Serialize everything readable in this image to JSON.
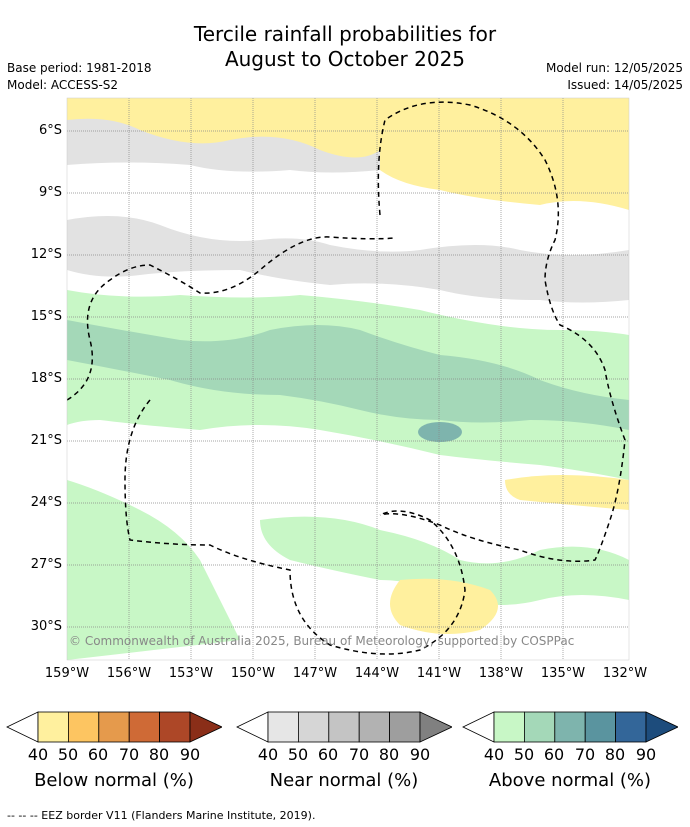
{
  "header": {
    "title_line1": "Tercile rainfall probabilities for",
    "title_line2": "August to October 2025",
    "base_period": "Base period: 1981-2018",
    "model": "Model: ACCESS-S2",
    "model_run": "Model run: 12/05/2025",
    "issued": "Issued: 14/05/2025"
  },
  "map": {
    "lat_labels": [
      "6°S",
      "9°S",
      "12°S",
      "15°S",
      "18°S",
      "21°S",
      "24°S",
      "27°S",
      "30°S"
    ],
    "lon_labels": [
      "159°W",
      "156°W",
      "153°W",
      "150°W",
      "147°W",
      "144°W",
      "141°W",
      "138°W",
      "135°W",
      "132°W"
    ],
    "copyright": "© Commonwealth of Australia 2025, Bureau of Meteorology, supported by COSPPac"
  },
  "legend": {
    "below": {
      "caption": "Below normal (%)",
      "ticks": [
        "40",
        "50",
        "60",
        "70",
        "80",
        "90"
      ],
      "colors": [
        "#ffffff",
        "#fff09e",
        "#fdc561",
        "#e59a4c",
        "#cf6a36",
        "#ad4727",
        "#8a2e18"
      ]
    },
    "near": {
      "caption": "Near normal (%)",
      "ticks": [
        "40",
        "50",
        "60",
        "70",
        "80",
        "90"
      ],
      "colors": [
        "#ffffff",
        "#e6e6e6",
        "#d6d6d6",
        "#c4c4c4",
        "#b2b2b2",
        "#9e9e9e",
        "#808080"
      ]
    },
    "above": {
      "caption": "Above normal (%)",
      "ticks": [
        "40",
        "50",
        "60",
        "70",
        "80",
        "90"
      ],
      "colors": [
        "#ffffff",
        "#c8f7c6",
        "#a4d8b8",
        "#7eb4ad",
        "#5a949f",
        "#336699",
        "#1d4c7c"
      ]
    }
  },
  "footer": {
    "eez_note": "--  --  -- EEZ border V11 (Flanders Marine Institute, 2019)."
  }
}
